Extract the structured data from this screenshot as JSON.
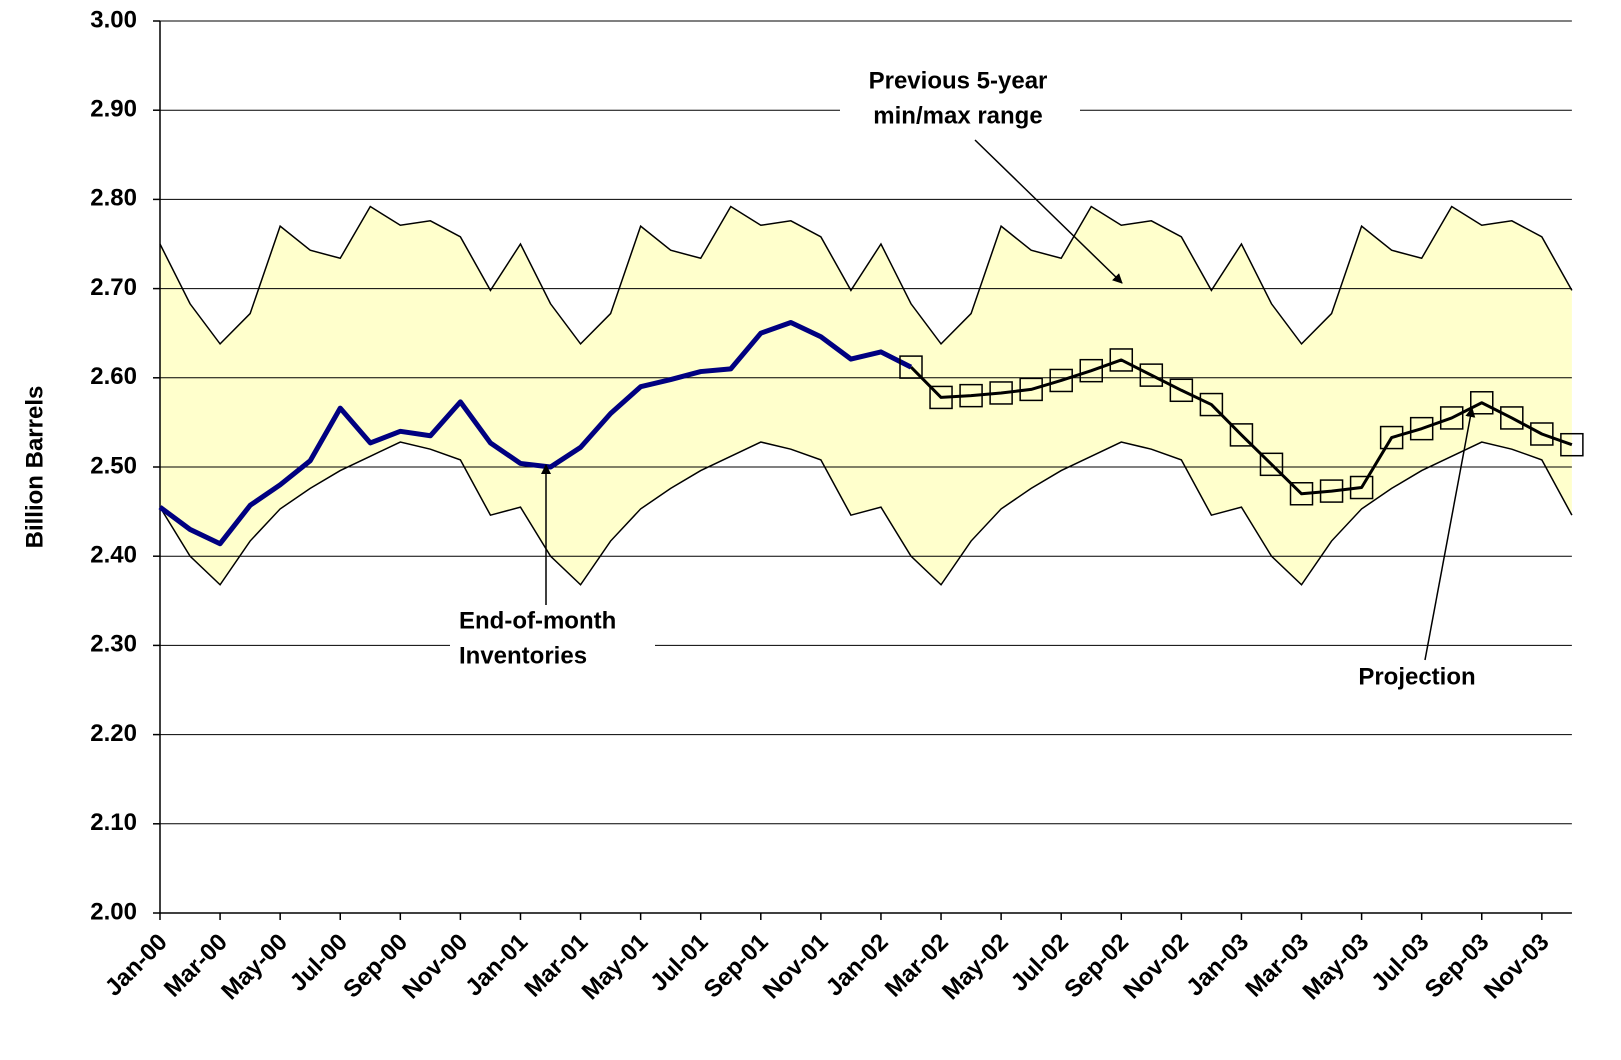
{
  "chart_data": {
    "type": "line",
    "y_label": "Billion Barrels",
    "categories": [
      "Jan-00",
      null,
      "Mar-00",
      null,
      "May-00",
      null,
      "Jul-00",
      null,
      "Sep-00",
      null,
      "Nov-00",
      null,
      "Jan-01",
      null,
      "Mar-01",
      null,
      "May-01",
      null,
      "Jul-01",
      null,
      "Sep-01",
      null,
      "Nov-01",
      null,
      "Jan-02",
      null,
      "Mar-02",
      null,
      "May-02",
      null,
      "Jul-02",
      null,
      "Sep-02",
      null,
      "Nov-02",
      null,
      "Jan-03",
      null,
      "Mar-03",
      null,
      "May-03",
      null,
      "Jul-03",
      null,
      "Sep-03",
      null,
      "Nov-03",
      null
    ],
    "ylim": [
      2.0,
      3.0
    ],
    "yticks": [
      {
        "value": 2.0,
        "label": "2.00"
      },
      {
        "value": 2.1,
        "label": "2.10"
      },
      {
        "value": 2.2,
        "label": "2.20"
      },
      {
        "value": 2.3,
        "label": "2.30"
      },
      {
        "value": 2.4,
        "label": "2.40"
      },
      {
        "value": 2.5,
        "label": "2.50"
      },
      {
        "value": 2.6,
        "label": "2.60"
      },
      {
        "value": 2.7,
        "label": "2.70"
      },
      {
        "value": 2.8,
        "label": "2.80"
      },
      {
        "value": 2.9,
        "label": "2.90"
      },
      {
        "value": 3.0,
        "label": "3.00"
      }
    ],
    "grid": true,
    "range": {
      "color": "#ffffcc",
      "upper": [
        2.75,
        2.683,
        2.638,
        2.672,
        2.77,
        2.743,
        2.734,
        2.792,
        2.771,
        2.776,
        2.758,
        2.698,
        2.75,
        2.683,
        2.638,
        2.672,
        2.77,
        2.743,
        2.734,
        2.792,
        2.771,
        2.776,
        2.758,
        2.698,
        2.75,
        2.683,
        2.638,
        2.672,
        2.77,
        2.743,
        2.734,
        2.792,
        2.771,
        2.776,
        2.758,
        2.698,
        2.75,
        2.683,
        2.638,
        2.672,
        2.77,
        2.743,
        2.734,
        2.792,
        2.771,
        2.776,
        2.758,
        2.698
      ],
      "lower": [
        2.455,
        2.4,
        2.368,
        2.417,
        2.453,
        2.476,
        2.496,
        2.512,
        2.528,
        2.52,
        2.508,
        2.446,
        2.455,
        2.4,
        2.368,
        2.417,
        2.453,
        2.476,
        2.496,
        2.512,
        2.528,
        2.52,
        2.508,
        2.446,
        2.455,
        2.4,
        2.368,
        2.417,
        2.453,
        2.476,
        2.496,
        2.512,
        2.528,
        2.52,
        2.508,
        2.446,
        2.455,
        2.4,
        2.368,
        2.417,
        2.453,
        2.476,
        2.496,
        2.512,
        2.528,
        2.52,
        2.508,
        2.446
      ]
    },
    "series": [
      {
        "color": "#000080",
        "values": [
          2.455,
          2.43,
          2.414,
          2.457,
          2.48,
          2.507,
          2.566,
          2.527,
          2.54,
          2.535,
          2.573,
          2.527,
          2.504,
          2.5,
          2.522,
          2.56,
          2.59,
          2.598,
          2.607,
          2.61,
          2.65,
          2.662,
          2.646,
          2.621,
          2.629,
          2.612,
          null,
          null,
          null,
          null,
          null,
          null,
          null,
          null,
          null,
          null,
          null,
          null,
          null,
          null,
          null,
          null,
          null,
          null,
          null,
          null,
          null,
          null
        ]
      },
      {
        "color": "#000000",
        "marker": "square",
        "values": [
          null,
          null,
          null,
          null,
          null,
          null,
          null,
          null,
          null,
          null,
          null,
          null,
          null,
          null,
          null,
          null,
          null,
          null,
          null,
          null,
          null,
          null,
          null,
          null,
          null,
          2.612,
          2.578,
          2.58,
          2.583,
          2.587,
          2.597,
          2.608,
          2.62,
          2.603,
          2.586,
          2.57,
          2.536,
          2.503,
          2.47,
          2.473,
          2.477,
          2.533,
          2.543,
          2.555,
          2.572,
          2.555,
          2.537,
          2.525
        ]
      }
    ],
    "annotations": [
      {
        "lines": [
          "Previous 5-year",
          "min/max range"
        ]
      },
      {
        "lines": [
          "End-of-month",
          "Inventories"
        ]
      },
      {
        "lines": [
          "Projection"
        ]
      }
    ]
  }
}
